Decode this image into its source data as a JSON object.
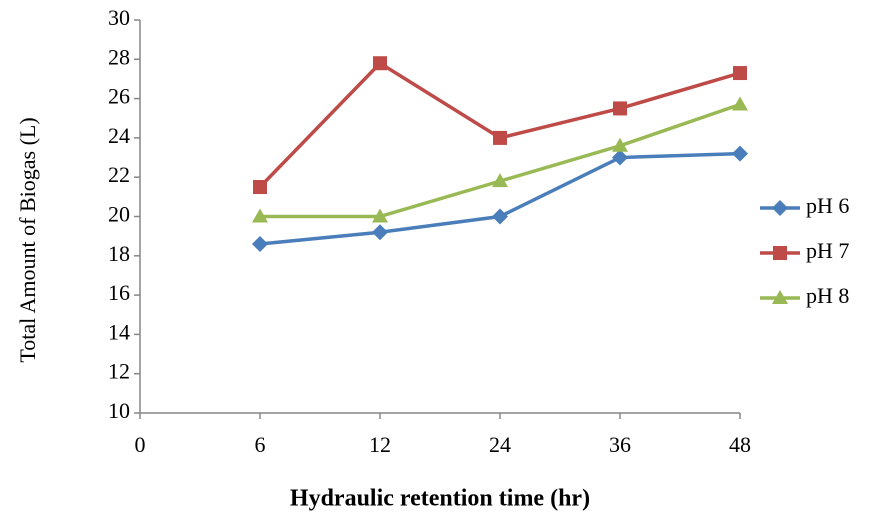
{
  "chart_data": {
    "type": "line",
    "x_label": "Hydraulic retention time (hr)",
    "y_label": "Total Amount of Biogas (L)",
    "categories": [
      "0",
      "6",
      "12",
      "24",
      "36",
      "48"
    ],
    "series": [
      {
        "name": "pH 6",
        "color": "#4a7ebb",
        "marker": "diamond",
        "values": [
          null,
          18.6,
          19.2,
          20,
          23,
          23.2
        ]
      },
      {
        "name": "pH 7",
        "color": "#be4b48",
        "marker": "square",
        "values": [
          null,
          21.5,
          27.8,
          24,
          25.5,
          27.3
        ]
      },
      {
        "name": "pH 8",
        "color": "#98b954",
        "marker": "triangle",
        "values": [
          null,
          20,
          20,
          21.8,
          23.6,
          25.7
        ]
      }
    ],
    "ylim": [
      10,
      30
    ],
    "yticks": [
      10,
      12,
      14,
      16,
      18,
      20,
      22,
      24,
      26,
      28,
      30
    ],
    "grid": false,
    "legend": "right"
  }
}
